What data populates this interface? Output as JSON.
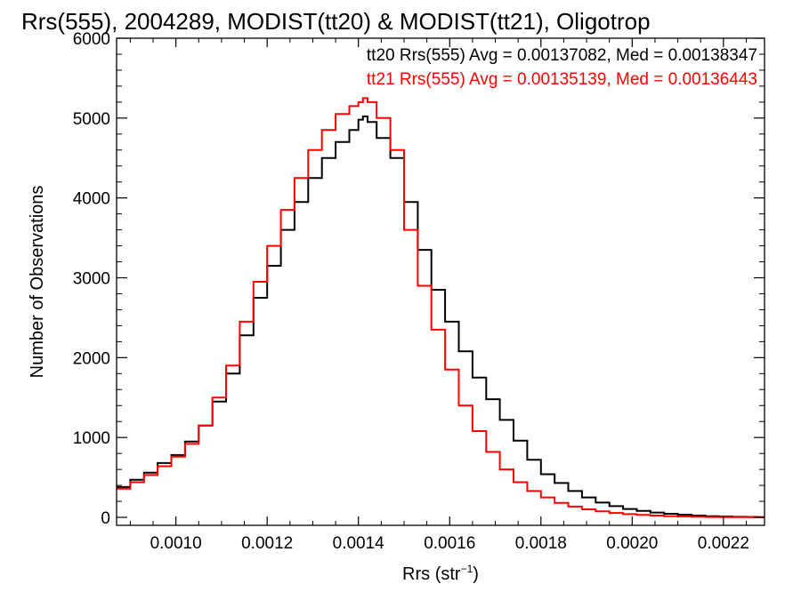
{
  "chart_data": {
    "type": "line",
    "title": "Rrs(555), 2004289, MODIST(tt20) & MODIST(tt21), Oligotrop",
    "xlabel": "Rrs (str",
    "xlabel_sup": "−1",
    "xlabel_suffix": ")",
    "ylabel": "Number of Observations",
    "xlim": [
      0.00087,
      0.00229
    ],
    "ylim": [
      -100,
      6000
    ],
    "x_ticks": [
      0.001,
      0.0012,
      0.0014,
      0.0016,
      0.0018,
      0.002,
      0.0022
    ],
    "x_tick_labels": [
      "0.0010",
      "0.0012",
      "0.0014",
      "0.0016",
      "0.0018",
      "0.0020",
      "0.0022"
    ],
    "y_ticks": [
      0,
      1000,
      2000,
      3000,
      4000,
      5000,
      6000
    ],
    "y_tick_labels": [
      "0",
      "1000",
      "2000",
      "3000",
      "4000",
      "5000",
      "6000"
    ],
    "grid": false,
    "legend_placement": "top-right",
    "series": [
      {
        "name": "tt20",
        "color": "#000000",
        "annotation": "tt20 Rrs(555) Avg = 0.00137082, Med = 0.00138347",
        "x": [
          0.00087,
          0.0009,
          0.00093,
          0.00096,
          0.00099,
          0.00102,
          0.00105,
          0.00108,
          0.00111,
          0.00114,
          0.00117,
          0.0012,
          0.00123,
          0.00126,
          0.00129,
          0.00132,
          0.00135,
          0.00138,
          0.0014,
          0.00141,
          0.00142,
          0.00144,
          0.00147,
          0.0015,
          0.00153,
          0.00156,
          0.00159,
          0.00162,
          0.00165,
          0.00168,
          0.00171,
          0.00174,
          0.00177,
          0.0018,
          0.00183,
          0.00186,
          0.00189,
          0.00192,
          0.00195,
          0.00198,
          0.00201,
          0.00204,
          0.00207,
          0.0021,
          0.00213,
          0.00216,
          0.00219,
          0.00222,
          0.00225,
          0.00228
        ],
        "values": [
          380,
          470,
          560,
          680,
          780,
          950,
          1150,
          1450,
          1800,
          2280,
          2750,
          3150,
          3600,
          3950,
          4250,
          4500,
          4700,
          4850,
          4980,
          5020,
          4950,
          4750,
          4500,
          3950,
          3350,
          2850,
          2450,
          2080,
          1750,
          1480,
          1220,
          960,
          720,
          540,
          430,
          330,
          250,
          185,
          140,
          105,
          80,
          60,
          45,
          32,
          22,
          15,
          10,
          7,
          5,
          3
        ]
      },
      {
        "name": "tt21",
        "color": "#ff0000",
        "annotation": "tt21 Rrs(555) Avg = 0.00135139, Med = 0.00136443",
        "x": [
          0.00087,
          0.0009,
          0.00093,
          0.00096,
          0.00099,
          0.00102,
          0.00105,
          0.00108,
          0.00111,
          0.00114,
          0.00117,
          0.0012,
          0.00123,
          0.00126,
          0.00129,
          0.00132,
          0.00135,
          0.00138,
          0.0014,
          0.00141,
          0.00142,
          0.00144,
          0.00147,
          0.0015,
          0.00153,
          0.00156,
          0.00159,
          0.00162,
          0.00165,
          0.00168,
          0.00171,
          0.00174,
          0.00177,
          0.0018,
          0.00183,
          0.00186,
          0.00189,
          0.00192,
          0.00195,
          0.00198,
          0.00201,
          0.00204,
          0.00207,
          0.0021,
          0.00213,
          0.00216,
          0.00219,
          0.00222,
          0.00225,
          0.00228
        ],
        "values": [
          360,
          440,
          530,
          640,
          760,
          920,
          1150,
          1500,
          1900,
          2450,
          2950,
          3400,
          3850,
          4250,
          4600,
          4850,
          5050,
          5150,
          5200,
          5250,
          5200,
          5000,
          4600,
          3600,
          2900,
          2350,
          1850,
          1400,
          1080,
          820,
          600,
          440,
          330,
          250,
          180,
          135,
          100,
          75,
          55,
          40,
          30,
          22,
          15,
          10,
          7,
          5,
          4,
          3,
          2,
          1
        ]
      }
    ]
  }
}
